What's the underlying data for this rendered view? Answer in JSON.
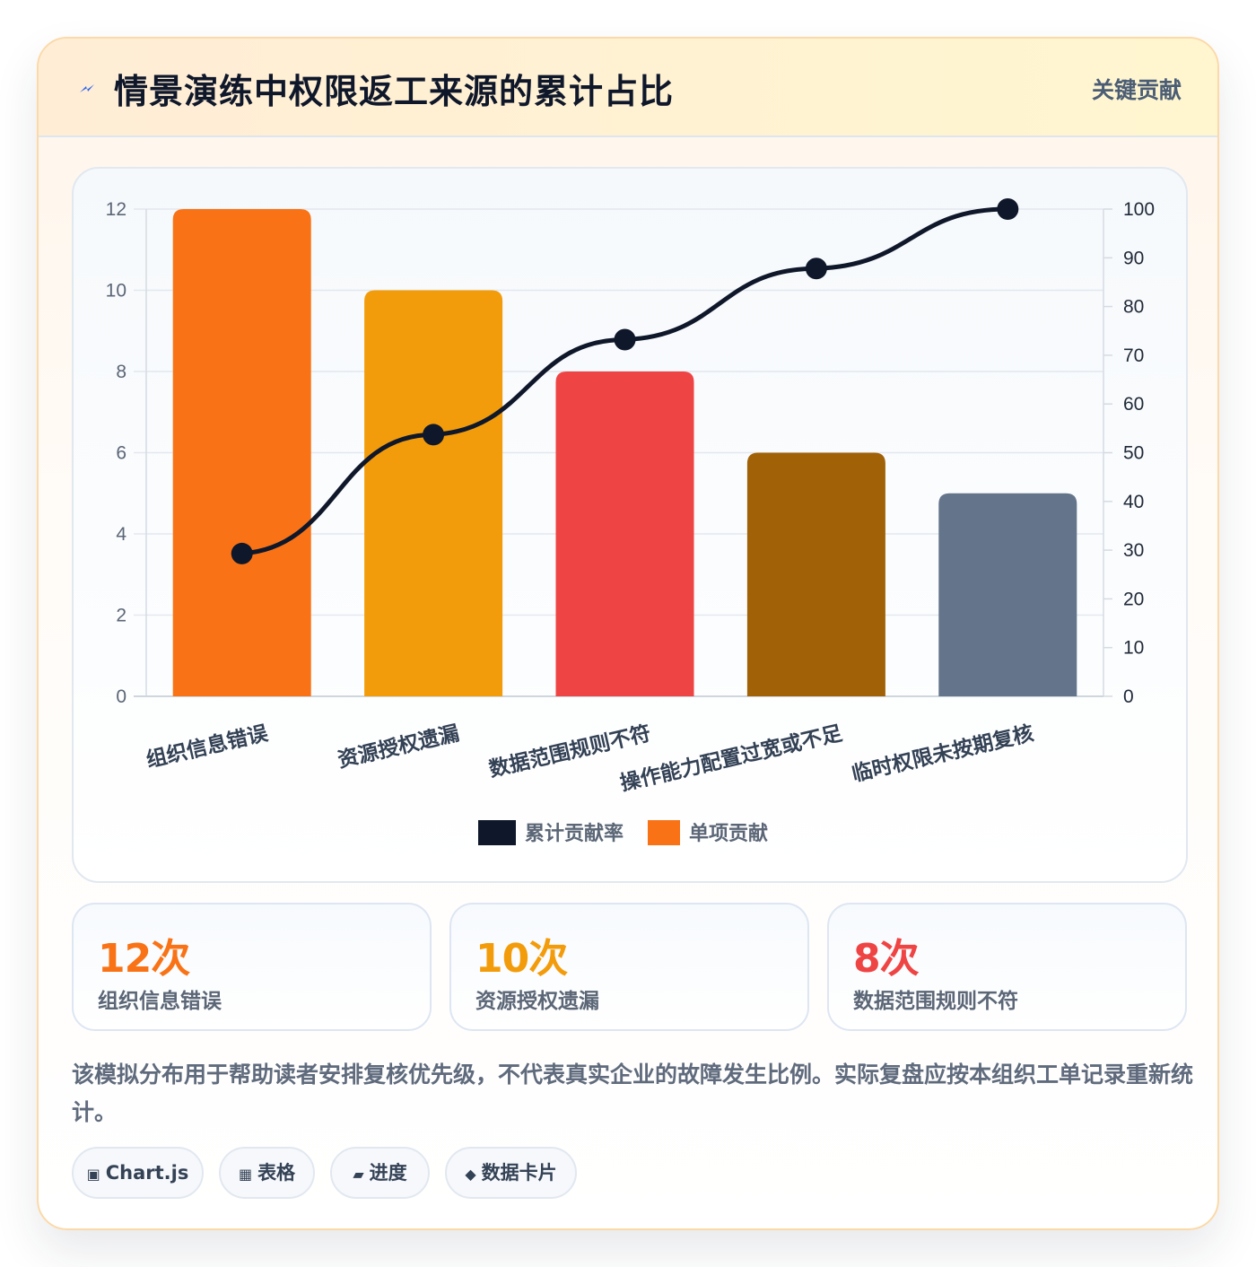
{
  "header": {
    "icon": "lightning-icon",
    "title": "情景演练中权限返工来源的累计占比",
    "badge": "关键贡献"
  },
  "chart_data": {
    "type": "bar",
    "categories": [
      "组织信息错误",
      "资源授权遗漏",
      "数据范围规则不符",
      "操作能力配置过宽或不足",
      "临时权限未按期复核"
    ],
    "series": [
      {
        "name": "单项贡献",
        "type": "bar",
        "axis": "left",
        "values": [
          12,
          10,
          8,
          6,
          5
        ],
        "colors": [
          "#f97316",
          "#f39c0b",
          "#ef4444",
          "#a16207",
          "#64748b"
        ]
      },
      {
        "name": "累计贡献率",
        "type": "line",
        "axis": "right",
        "values": [
          29.3,
          53.7,
          73.2,
          87.8,
          100
        ],
        "color": "#0f172a"
      }
    ],
    "y_left": {
      "min": 0,
      "max": 12,
      "ticks": [
        0,
        2,
        4,
        6,
        8,
        10,
        12
      ]
    },
    "y_right": {
      "min": 0,
      "max": 100,
      "ticks": [
        0,
        10,
        20,
        30,
        40,
        50,
        60,
        70,
        80,
        90,
        100
      ]
    },
    "grid": true,
    "legend": {
      "position": "bottom",
      "entries": [
        {
          "label": "累计贡献率",
          "color": "#0f172a"
        },
        {
          "label": "单项贡献",
          "color": "#f97316"
        }
      ]
    }
  },
  "stats": [
    {
      "value": "12次",
      "label": "组织信息错误",
      "color": "#f97316"
    },
    {
      "value": "10次",
      "label": "资源授权遗漏",
      "color": "#f39c0b"
    },
    {
      "value": "8次",
      "label": "数据范围规则不符",
      "color": "#ef4444"
    }
  ],
  "note": "该模拟分布用于帮助读者安排复核优先级，不代表真实企业的故障发生比例。实际复盘应按本组织工单记录重新统计。",
  "tags": [
    {
      "icon": "chart-icon",
      "glyph": "▣",
      "label": "Chart.js"
    },
    {
      "icon": "table-icon",
      "glyph": "▦",
      "label": "表格"
    },
    {
      "icon": "progress-icon",
      "glyph": "▰",
      "label": "进度"
    },
    {
      "icon": "diamond-icon",
      "glyph": "◆",
      "label": "数据卡片"
    }
  ]
}
